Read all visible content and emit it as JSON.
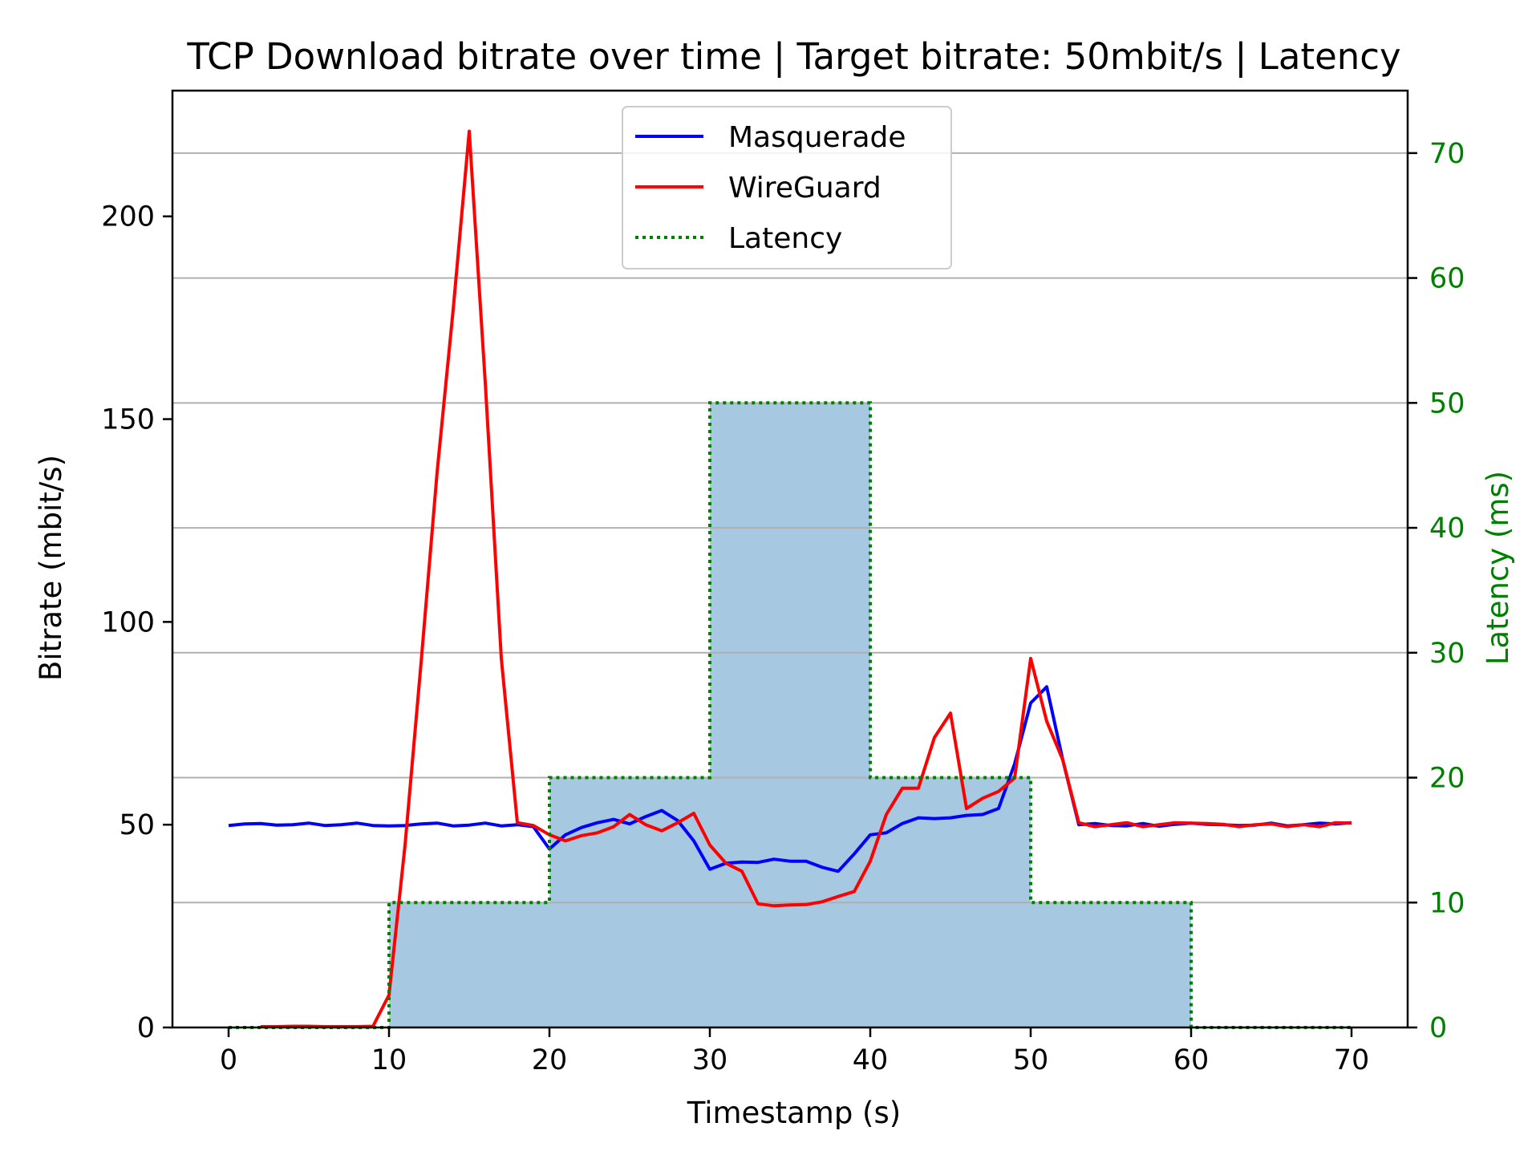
{
  "chart_data": {
    "type": "line",
    "title": "TCP Download bitrate over time | Target bitrate: 50mbit/s | Latency",
    "xlabel": "Timestamp (s)",
    "ylabel": "Bitrate (mbit/s)",
    "ylabel_right": "Latency (ms)",
    "xlim": [
      -3.5,
      73.5
    ],
    "ylim": [
      0,
      231
    ],
    "ylim_right": [
      0,
      75
    ],
    "x_ticks": [
      0,
      10,
      20,
      30,
      40,
      50,
      60,
      70
    ],
    "y_ticks": [
      0,
      50,
      100,
      150,
      200
    ],
    "y_ticks_right": [
      0,
      10,
      20,
      30,
      40,
      50,
      60,
      70
    ],
    "grid": "horizontal lines at right-axis ticks",
    "legend_position": "upper center",
    "colors": {
      "masquerade": "#0000ff",
      "wireguard": "#ff0000",
      "latency": "#008000",
      "latency_fill": "#a6c8e0",
      "grid": "#b0b0b0",
      "right_axis": "#008000"
    },
    "series": [
      {
        "name": "Masquerade",
        "axis": "left",
        "x": [
          0,
          1,
          2,
          3,
          4,
          5,
          6,
          7,
          8,
          9,
          10,
          11,
          12,
          13,
          14,
          15,
          16,
          17,
          18,
          19,
          20,
          21,
          22,
          23,
          24,
          25,
          26,
          27,
          28,
          29,
          30,
          31,
          32,
          33,
          34,
          35,
          36,
          37,
          38,
          39,
          40,
          41,
          42,
          43,
          44,
          45,
          46,
          47,
          48,
          49,
          50,
          51,
          52,
          53,
          54,
          55,
          56,
          57,
          58,
          59,
          60,
          61,
          62,
          63,
          64,
          65,
          66,
          67,
          68,
          69,
          70
        ],
        "values": [
          49.8,
          50.2,
          50.3,
          49.9,
          50.0,
          50.4,
          49.8,
          50.0,
          50.4,
          49.8,
          49.7,
          49.8,
          50.2,
          50.4,
          49.7,
          49.9,
          50.4,
          49.7,
          50.0,
          49.5,
          44.0,
          47.5,
          49.3,
          50.5,
          51.3,
          50.2,
          52.0,
          53.5,
          51.0,
          46.0,
          39.0,
          40.5,
          40.8,
          40.7,
          41.5,
          41.0,
          41.0,
          39.5,
          38.5,
          42.8,
          47.5,
          48.0,
          50.3,
          51.7,
          51.5,
          51.7,
          52.3,
          52.5,
          54.0,
          65.0,
          80.0,
          84.0,
          66.0,
          50.0,
          50.3,
          49.8,
          49.7,
          50.3,
          49.6,
          50.1,
          50.4,
          50.1,
          50.0,
          49.8,
          49.9,
          50.4,
          49.7,
          50.0,
          50.4,
          50.2,
          50.5
        ]
      },
      {
        "name": "WireGuard",
        "axis": "left",
        "x": [
          2,
          3,
          4,
          5,
          6,
          7,
          8,
          9,
          10,
          11,
          12,
          13,
          14,
          15,
          16,
          17,
          18,
          19,
          20,
          21,
          22,
          23,
          24,
          25,
          26,
          27,
          28,
          29,
          30,
          31,
          32,
          33,
          34,
          35,
          36,
          37,
          38,
          39,
          40,
          41,
          42,
          43,
          44,
          45,
          46,
          47,
          48,
          49,
          50,
          51,
          52,
          53,
          54,
          55,
          56,
          57,
          58,
          59,
          60,
          61,
          62,
          63,
          64,
          65,
          66,
          67,
          68,
          69,
          70
        ],
        "values": [
          0.2,
          0.2,
          0.3,
          0.3,
          0.2,
          0.2,
          0.2,
          0.3,
          8.0,
          45.0,
          90.0,
          137.0,
          177.0,
          221.0,
          159.0,
          91.0,
          50.5,
          49.8,
          47.5,
          46.0,
          47.3,
          48.0,
          49.5,
          52.5,
          50.0,
          48.5,
          50.5,
          52.8,
          45.0,
          40.5,
          38.5,
          30.5,
          30.0,
          30.2,
          30.3,
          31.0,
          32.3,
          33.5,
          41.0,
          52.5,
          59.0,
          59.0,
          71.5,
          77.5,
          54.0,
          56.5,
          58.2,
          61.5,
          91.0,
          75.5,
          66.0,
          50.5,
          49.5,
          50.0,
          50.5,
          49.5,
          50.0,
          50.5,
          50.4,
          50.3,
          50.1,
          49.5,
          50.0,
          50.2,
          49.5,
          50.0,
          49.5,
          50.5,
          50.4
        ]
      },
      {
        "name": "Latency",
        "axis": "right",
        "style": "dotted step",
        "x": [
          0,
          10,
          10,
          20,
          20,
          30,
          30,
          40,
          40,
          50,
          50,
          60,
          60,
          70
        ],
        "values": [
          0,
          0,
          10,
          10,
          20,
          20,
          50,
          50,
          20,
          20,
          10,
          10,
          0,
          0
        ]
      }
    ]
  }
}
